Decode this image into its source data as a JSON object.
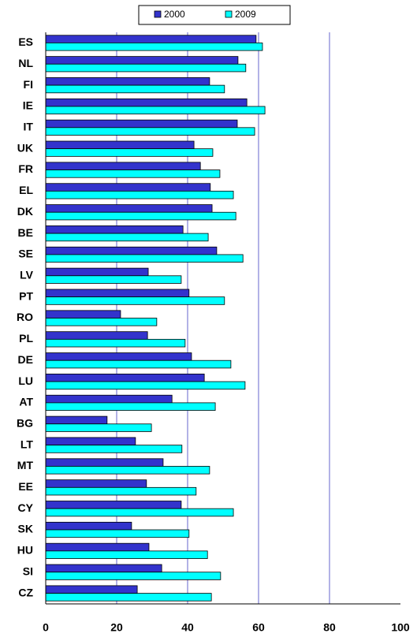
{
  "chart_data": {
    "type": "hbar",
    "categories": [
      "ES",
      "NL",
      "FI",
      "IE",
      "IT",
      "UK",
      "FR",
      "EL",
      "DK",
      "BE",
      "SE",
      "LV",
      "PT",
      "RO",
      "PL",
      "DE",
      "LU",
      "AT",
      "BG",
      "LT",
      "MT",
      "EE",
      "CY",
      "SK",
      "HU",
      "SI",
      "CZ"
    ],
    "series": [
      {
        "name": "2000",
        "color": "#3333cc",
        "values": [
          59.3,
          54.2,
          46.2,
          56.7,
          54,
          41.8,
          43.6,
          46.4,
          46.9,
          38.7,
          48.2,
          28.9,
          40.4,
          21.1,
          28.7,
          41.1,
          44.7,
          35.6,
          17.3,
          25.3,
          33.1,
          28.4,
          38.2,
          24.2,
          29.1,
          32.7,
          25.8
        ]
      },
      {
        "name": "2009",
        "color": "#00ffff",
        "values": [
          61.1,
          56.4,
          50.4,
          61.8,
          58.9,
          47.1,
          49.1,
          52.9,
          53.6,
          45.8,
          55.6,
          38.2,
          50.4,
          31.3,
          39.3,
          52.2,
          56.2,
          47.8,
          29.8,
          38.4,
          46.2,
          42.4,
          52.9,
          40.4,
          45.6,
          49.3,
          46.7
        ]
      }
    ],
    "xlim": [
      0,
      100
    ],
    "xticks": [
      0,
      20,
      40,
      60,
      80,
      100
    ],
    "grid": true,
    "legend": "top"
  }
}
